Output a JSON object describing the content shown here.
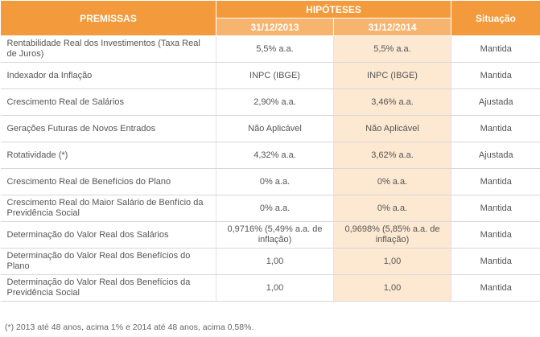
{
  "header": {
    "premissas": "PREMISSAS",
    "hipoteses": "HIPÓTESES",
    "col_2013": "31/12/2013",
    "col_2014": "31/12/2014",
    "situacao": "Situação"
  },
  "rows": [
    {
      "label": "Rentabilidade Real dos Investimentos (Taxa Real de Juros)",
      "v2013": "5,5% a.a.",
      "v2014": "5,5% a.a.",
      "situacao": "Mantida"
    },
    {
      "label": "Indexador da Inflação",
      "v2013": "INPC (IBGE)",
      "v2014": "INPC (IBGE)",
      "situacao": "Mantida"
    },
    {
      "label": "Crescimento Real de Salários",
      "v2013": "2,90% a.a.",
      "v2014": "3,46% a.a.",
      "situacao": "Ajustada"
    },
    {
      "label": "Gerações Futuras de Novos Entrados",
      "v2013": "Não Aplicável",
      "v2014": "Não Aplicável",
      "situacao": "Mantida"
    },
    {
      "label": "Rotatividade (*)",
      "v2013": "4,32% a.a.",
      "v2014": "3,62% a.a.",
      "situacao": "Ajustada"
    },
    {
      "label": "Crescimento Real de Benefícios do Plano",
      "v2013": "0% a.a.",
      "v2014": "0% a.a.",
      "situacao": "Mantida"
    },
    {
      "label": "Crescimento Real do Maior Salário de Benfício da Previdência Social",
      "v2013": "0% a.a.",
      "v2014": "0% a.a.",
      "situacao": "Mantida"
    },
    {
      "label": "Determinação do Valor Real dos Salários",
      "v2013": "0,9716% (5,49% a.a. de inflação)",
      "v2014": "0,9698% (5,85% a.a. de inflação)",
      "situacao": "Mantida"
    },
    {
      "label": "Determinação do Valor Real dos Benefícios do Plano",
      "v2013": "1,00",
      "v2014": "1,00",
      "situacao": "Mantida"
    },
    {
      "label": "Determinação do Valor Real dos Benefícios da Previdência Social",
      "v2013": "1,00",
      "v2014": "1,00",
      "situacao": "Mantida"
    }
  ],
  "footnote": "(*) 2013 até 48 anos, acima 1% e 2014 até 48 anos, acima 0,58%.",
  "colors": {
    "header": "#f39a3c",
    "subheader": "#f7b46f",
    "highlight_column": "#fde8d2"
  }
}
